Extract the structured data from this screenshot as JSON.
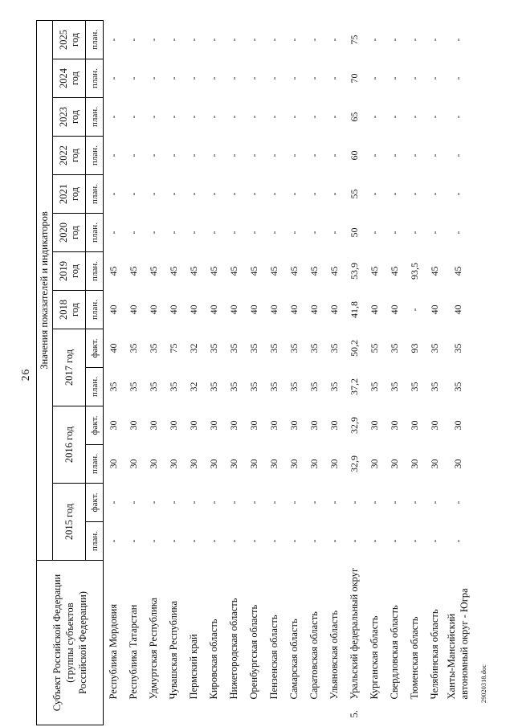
{
  "page": {
    "number": "26",
    "footer": "29020318.doc"
  },
  "table": {
    "region_header": "Субъект Российской Федерации\n(группы субъектов\nРоссийской Федерации)",
    "values_header": "Значения показателей и индикаторов",
    "year_groups": [
      {
        "label": "2015 год",
        "subs": [
          "план.",
          "факт."
        ]
      },
      {
        "label": "2016 год",
        "subs": [
          "план.",
          "факт."
        ]
      },
      {
        "label": "2017 год",
        "subs": [
          "план.",
          "факт."
        ]
      },
      {
        "label": "2018 год",
        "subs": [
          "план."
        ]
      },
      {
        "label": "2019 год",
        "subs": [
          "план."
        ]
      },
      {
        "label": "2020 год",
        "subs": [
          "план."
        ]
      },
      {
        "label": "2021 год",
        "subs": [
          "план."
        ]
      },
      {
        "label": "2022 год",
        "subs": [
          "план."
        ]
      },
      {
        "label": "2023 год",
        "subs": [
          "план."
        ]
      },
      {
        "label": "2024 год",
        "subs": [
          "план."
        ]
      },
      {
        "label": "2025 год",
        "subs": [
          "план."
        ]
      }
    ],
    "rows": [
      {
        "num": "",
        "name": "Республика Мордовия",
        "values": [
          "-",
          "-",
          "30",
          "30",
          "35",
          "40",
          "40",
          "45",
          "-",
          "-",
          "-",
          "-",
          "-",
          "-"
        ]
      },
      {
        "num": "",
        "name": "Республика Татарстан",
        "values": [
          "-",
          "-",
          "30",
          "30",
          "35",
          "35",
          "40",
          "45",
          "-",
          "-",
          "-",
          "-",
          "-",
          "-"
        ]
      },
      {
        "num": "",
        "name": "Удмуртская Республика",
        "values": [
          "-",
          "-",
          "30",
          "30",
          "35",
          "35",
          "40",
          "45",
          "-",
          "-",
          "-",
          "-",
          "-",
          "-"
        ]
      },
      {
        "num": "",
        "name": "Чувашская Республика",
        "values": [
          "-",
          "-",
          "30",
          "30",
          "35",
          "75",
          "40",
          "45",
          "-",
          "-",
          "-",
          "-",
          "-",
          "-"
        ]
      },
      {
        "num": "",
        "name": "Пермский край",
        "values": [
          "-",
          "-",
          "30",
          "30",
          "32",
          "32",
          "40",
          "45",
          "-",
          "-",
          "-",
          "-",
          "-",
          "-"
        ]
      },
      {
        "num": "",
        "name": "Кировская область",
        "values": [
          "-",
          "-",
          "30",
          "30",
          "35",
          "35",
          "40",
          "45",
          "-",
          "-",
          "-",
          "-",
          "-",
          "-"
        ]
      },
      {
        "num": "",
        "name": "Нижегородская область",
        "values": [
          "-",
          "-",
          "30",
          "30",
          "35",
          "35",
          "40",
          "45",
          "-",
          "-",
          "-",
          "-",
          "-",
          "-"
        ]
      },
      {
        "num": "",
        "name": "Оренбургская область",
        "values": [
          "-",
          "-",
          "30",
          "30",
          "35",
          "35",
          "40",
          "45",
          "-",
          "-",
          "-",
          "-",
          "-",
          "-"
        ]
      },
      {
        "num": "",
        "name": "Пензенская область",
        "values": [
          "-",
          "-",
          "30",
          "30",
          "35",
          "35",
          "40",
          "45",
          "-",
          "-",
          "-",
          "-",
          "-",
          "-"
        ]
      },
      {
        "num": "",
        "name": "Самарская область",
        "values": [
          "-",
          "-",
          "30",
          "30",
          "35",
          "35",
          "40",
          "45",
          "-",
          "-",
          "-",
          "-",
          "-",
          "-"
        ]
      },
      {
        "num": "",
        "name": "Саратовская область",
        "values": [
          "-",
          "-",
          "30",
          "30",
          "35",
          "35",
          "40",
          "45",
          "-",
          "-",
          "-",
          "-",
          "-",
          "-"
        ]
      },
      {
        "num": "",
        "name": "Ульяновская область",
        "values": [
          "-",
          "-",
          "30",
          "30",
          "35",
          "35",
          "40",
          "45",
          "-",
          "-",
          "-",
          "-",
          "-",
          "-"
        ]
      },
      {
        "num": "5.",
        "name": "Уральский федеральный округ",
        "values": [
          "-",
          "-",
          "32,9",
          "32,9",
          "37,2",
          "50,2",
          "41,8",
          "53,9",
          "50",
          "55",
          "60",
          "65",
          "70",
          "75"
        ]
      },
      {
        "num": "",
        "name": "Курганская область",
        "values": [
          "-",
          "-",
          "30",
          "30",
          "35",
          "55",
          "40",
          "45",
          "-",
          "-",
          "-",
          "-",
          "-",
          "-"
        ]
      },
      {
        "num": "",
        "name": "Свердловская область",
        "values": [
          "-",
          "-",
          "30",
          "30",
          "35",
          "35",
          "40",
          "45",
          "-",
          "-",
          "-",
          "-",
          "-",
          "-"
        ]
      },
      {
        "num": "",
        "name": "Тюменская область",
        "values": [
          "-",
          "-",
          "30",
          "30",
          "35",
          "93",
          "-",
          "93,5",
          "-",
          "-",
          "-",
          "-",
          "-",
          "-"
        ]
      },
      {
        "num": "",
        "name": "Челябинская область",
        "values": [
          "-",
          "-",
          "30",
          "30",
          "35",
          "35",
          "40",
          "45",
          "-",
          "-",
          "-",
          "-",
          "-",
          "-"
        ]
      },
      {
        "num": "",
        "name": "Ханты-Мансийский автономный округ - Югра",
        "values": [
          "-",
          "-",
          "30",
          "30",
          "35",
          "35",
          "40",
          "45",
          "-",
          "-",
          "-",
          "-",
          "-",
          "-"
        ]
      }
    ]
  }
}
